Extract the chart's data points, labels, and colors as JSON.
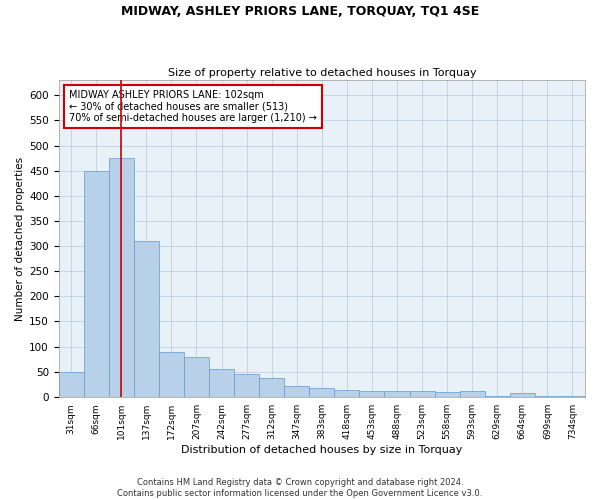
{
  "title": "MIDWAY, ASHLEY PRIORS LANE, TORQUAY, TQ1 4SE",
  "subtitle": "Size of property relative to detached houses in Torquay",
  "xlabel": "Distribution of detached houses by size in Torquay",
  "ylabel": "Number of detached properties",
  "categories": [
    "31sqm",
    "66sqm",
    "101sqm",
    "137sqm",
    "172sqm",
    "207sqm",
    "242sqm",
    "277sqm",
    "312sqm",
    "347sqm",
    "383sqm",
    "418sqm",
    "453sqm",
    "488sqm",
    "523sqm",
    "558sqm",
    "593sqm",
    "629sqm",
    "664sqm",
    "699sqm",
    "734sqm"
  ],
  "values": [
    50,
    450,
    475,
    310,
    90,
    80,
    55,
    45,
    38,
    22,
    18,
    13,
    12,
    12,
    11,
    10,
    12,
    2,
    8,
    2,
    2
  ],
  "bar_color": "#b8d0e8",
  "bar_edge_color": "#6699cc",
  "highlight_bar_index": 2,
  "red_line_color": "#cc0000",
  "annotation_text": "MIDWAY ASHLEY PRIORS LANE: 102sqm\n← 30% of detached houses are smaller (513)\n70% of semi-detached houses are larger (1,210) →",
  "annotation_box_color": "#ffffff",
  "annotation_box_edge_color": "#cc0000",
  "ylim": [
    0,
    630
  ],
  "yticks": [
    0,
    50,
    100,
    150,
    200,
    250,
    300,
    350,
    400,
    450,
    500,
    550,
    600
  ],
  "bg_color": "#e8f0f8",
  "footer_line1": "Contains HM Land Registry data © Crown copyright and database right 2024.",
  "footer_line2": "Contains public sector information licensed under the Open Government Licence v3.0."
}
